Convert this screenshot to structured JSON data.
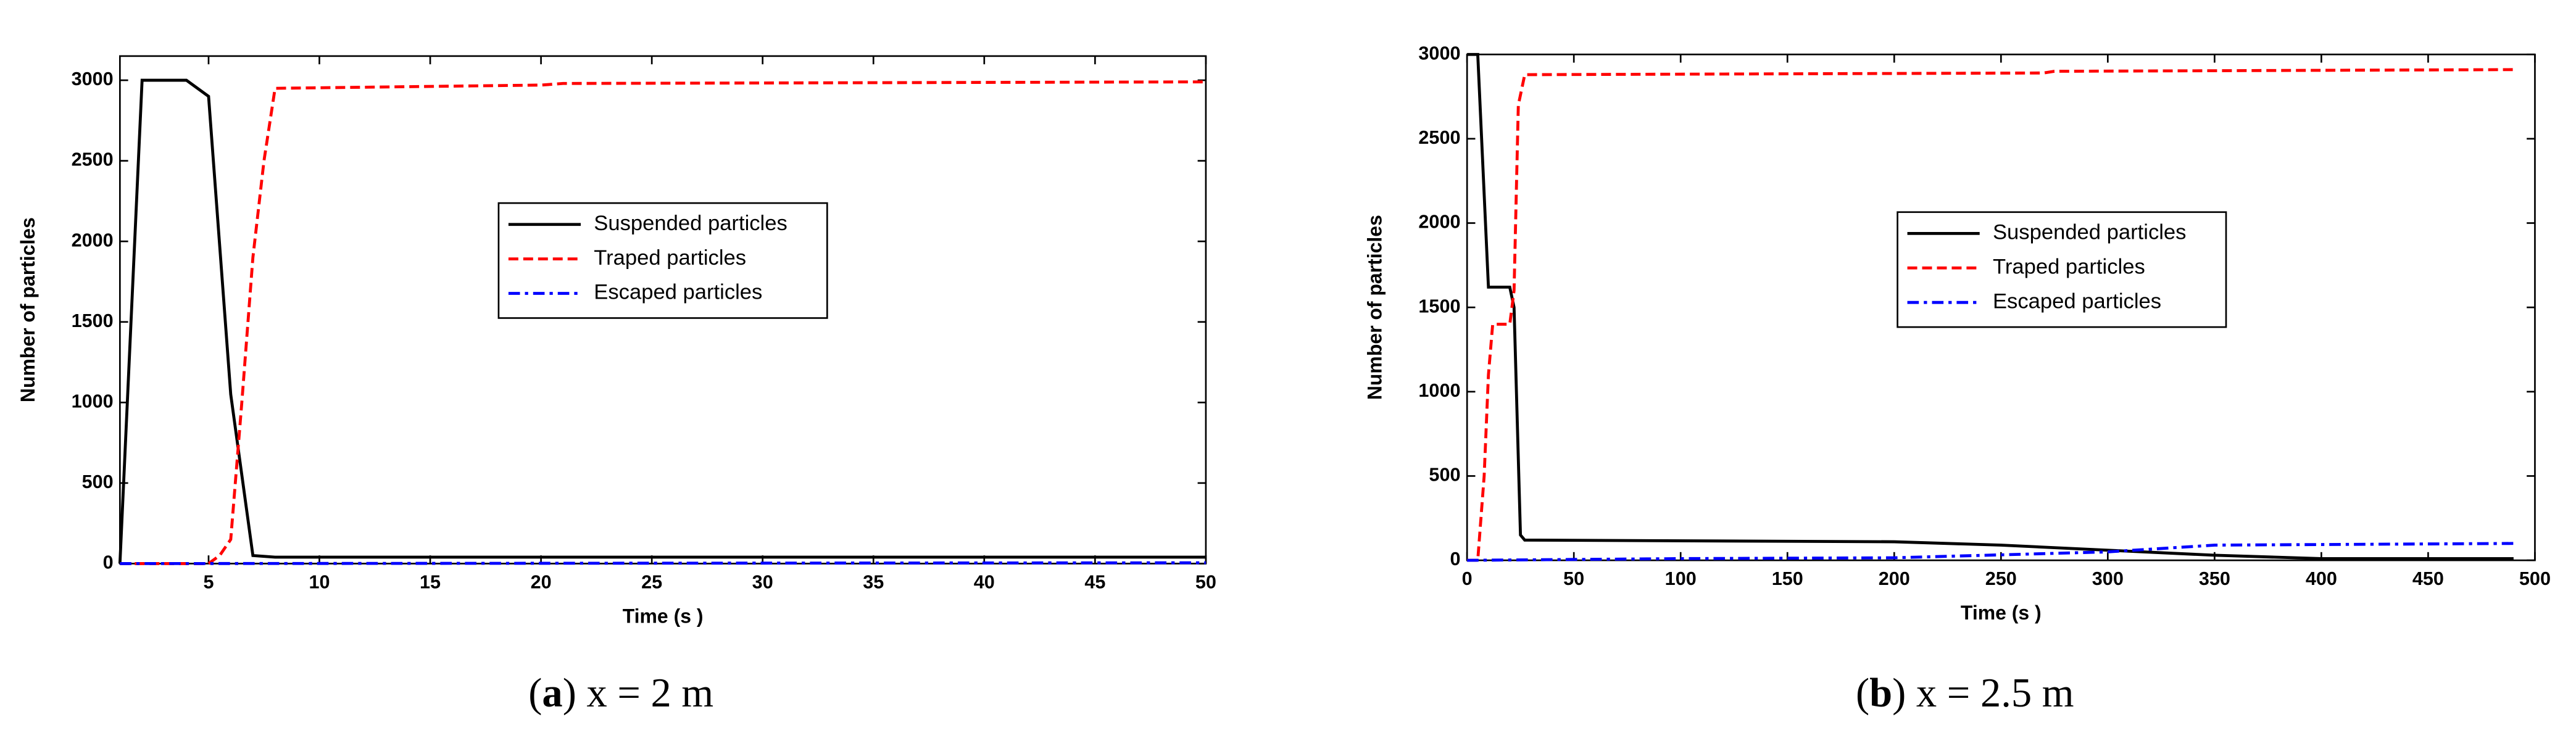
{
  "chart_data": [
    {
      "type": "line",
      "caption_parts": [
        "(",
        "a",
        ") x = 2 m"
      ],
      "x_label": "Time (s )",
      "y_label": "Number of particles",
      "xlim": [
        1,
        50
      ],
      "xticks": [
        5,
        10,
        15,
        20,
        25,
        30,
        35,
        40,
        45,
        50
      ],
      "ylim": [
        0,
        3150
      ],
      "yticks": [
        0,
        500,
        1000,
        1500,
        2000,
        2500,
        3000
      ],
      "legend": "center",
      "grid": false,
      "series": [
        {
          "name": "Suspended particles",
          "color": "#000000",
          "linestyle": "solid",
          "x": [
            1,
            2,
            4,
            5,
            6,
            7,
            8,
            50
          ],
          "values": [
            0,
            3000,
            3000,
            2900,
            1050,
            50,
            40,
            40
          ]
        },
        {
          "name": "Traped particles",
          "color": "#ff0000",
          "linestyle": "dashed",
          "x": [
            1,
            5,
            5.5,
            6,
            6.5,
            7,
            7.5,
            8,
            20,
            21,
            50
          ],
          "values": [
            0,
            0,
            50,
            150,
            1000,
            1900,
            2500,
            2950,
            2970,
            2980,
            2990
          ]
        },
        {
          "name": "Escaped particles",
          "color": "#0000ff",
          "linestyle": "dashdot",
          "x": [
            1,
            50
          ],
          "values": [
            0,
            5
          ]
        }
      ]
    },
    {
      "type": "line",
      "caption_parts": [
        "(",
        "b",
        ") x = 2.5 m"
      ],
      "x_label": "Time (s )",
      "y_label": "Number of particles",
      "xlim": [
        0,
        500
      ],
      "xticks": [
        0,
        50,
        100,
        150,
        200,
        250,
        300,
        350,
        400,
        450,
        500
      ],
      "ylim": [
        0,
        3000
      ],
      "yticks": [
        0,
        500,
        1000,
        1500,
        2000,
        2500,
        3000
      ],
      "legend": "center",
      "grid": false,
      "series": [
        {
          "name": "Suspended particles",
          "color": "#000000",
          "linestyle": "solid",
          "x": [
            0,
            5,
            10,
            20,
            22,
            25,
            27,
            200,
            250,
            300,
            350,
            400,
            490
          ],
          "values": [
            3000,
            3000,
            1620,
            1620,
            1500,
            150,
            120,
            110,
            90,
            60,
            30,
            10,
            10
          ]
        },
        {
          "name": "Traped particles",
          "color": "#ff0000",
          "linestyle": "dashed",
          "x": [
            0,
            5,
            8,
            10,
            12,
            20,
            22,
            24,
            27,
            270,
            275,
            490
          ],
          "values": [
            0,
            0,
            500,
            1100,
            1400,
            1400,
            1600,
            2700,
            2880,
            2890,
            2900,
            2910
          ]
        },
        {
          "name": "Escaped particles",
          "color": "#0000ff",
          "linestyle": "dashdot",
          "x": [
            0,
            100,
            200,
            300,
            350,
            490
          ],
          "values": [
            0,
            10,
            15,
            50,
            90,
            100
          ]
        }
      ]
    }
  ]
}
